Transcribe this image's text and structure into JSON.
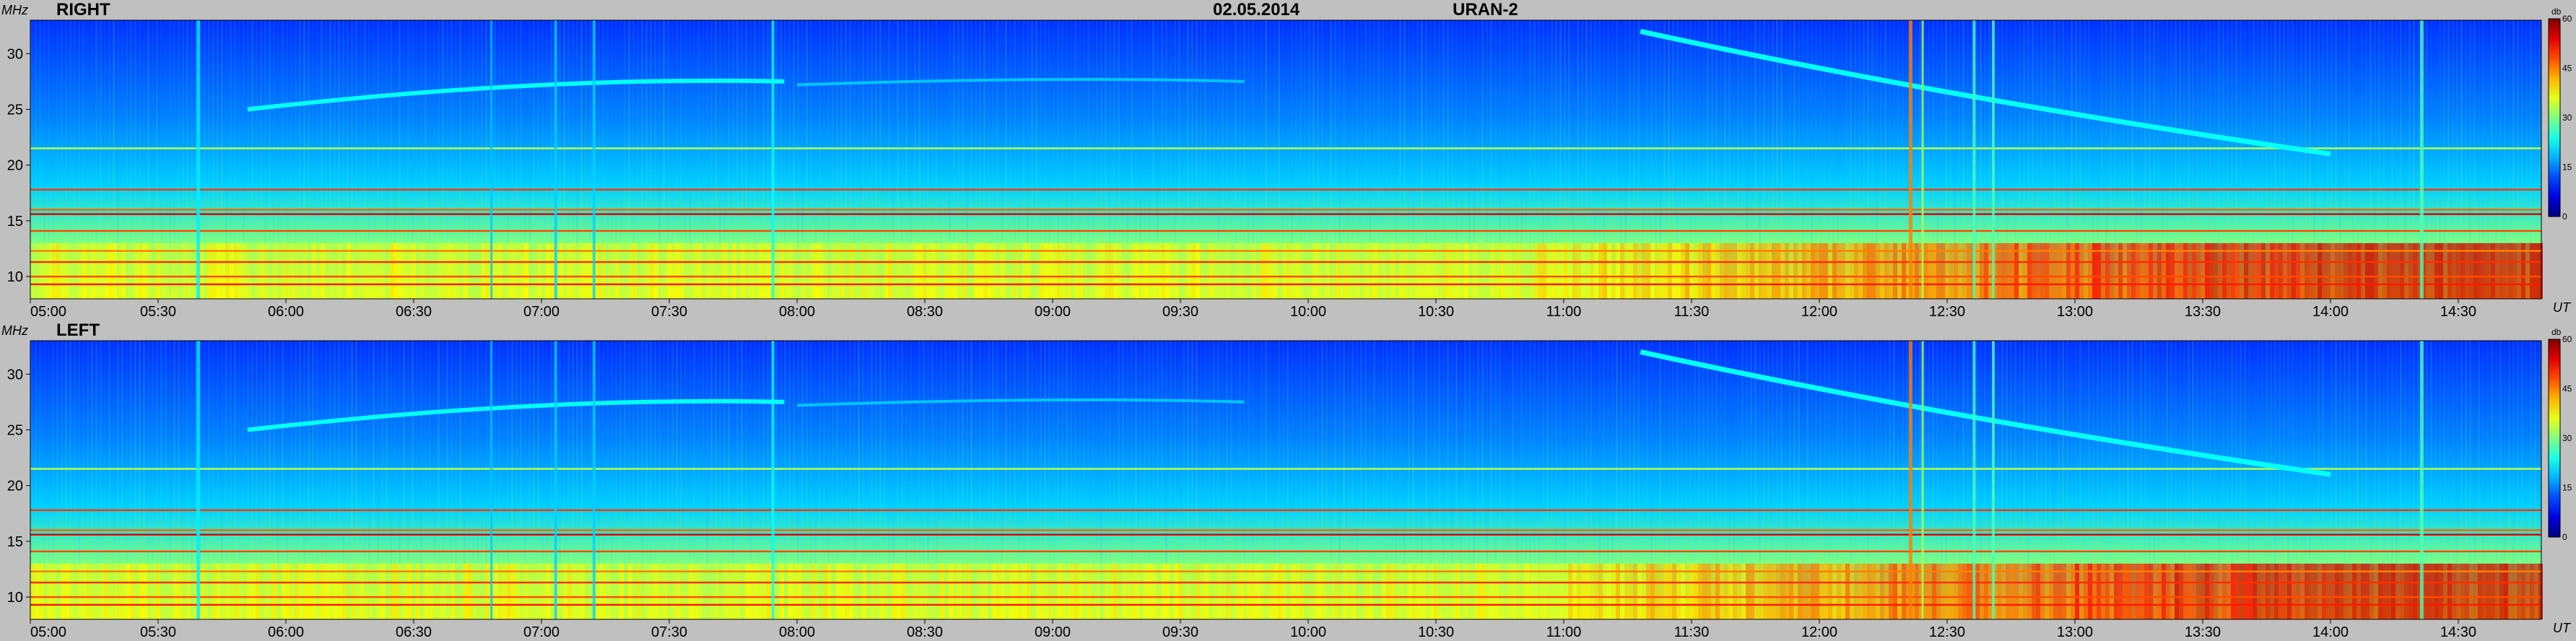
{
  "header": {
    "date": "02.05.2014",
    "instrument": "URAN-2"
  },
  "chart_data": [
    {
      "type": "heatmap",
      "title": "RIGHT",
      "ylabel": "MHz",
      "xlabel": "UT",
      "x_ticks": [
        "05:00",
        "05:30",
        "06:00",
        "06:30",
        "07:00",
        "07:30",
        "08:00",
        "08:30",
        "09:00",
        "09:30",
        "10:00",
        "10:30",
        "11:00",
        "11:30",
        "12:00",
        "12:30",
        "13:00",
        "13:30",
        "14:00",
        "14:30"
      ],
      "y_ticks": [
        "30",
        "25",
        "20",
        "15",
        "10"
      ],
      "ylim": [
        8,
        33
      ],
      "colorbar": {
        "label": "db",
        "ticks": [
          "60",
          "45",
          "30",
          "15",
          "0"
        ],
        "range": [
          0,
          60
        ]
      }
    },
    {
      "type": "heatmap",
      "title": "LEFT",
      "ylabel": "MHz",
      "xlabel": "UT",
      "x_ticks": [
        "05:00",
        "05:30",
        "06:00",
        "06:30",
        "07:00",
        "07:30",
        "08:00",
        "08:30",
        "09:00",
        "09:30",
        "10:00",
        "10:30",
        "11:00",
        "11:30",
        "12:00",
        "12:30",
        "13:00",
        "13:30",
        "14:00",
        "14:30"
      ],
      "y_ticks": [
        "30",
        "25",
        "20",
        "15",
        "10"
      ],
      "ylim": [
        8,
        33
      ],
      "colorbar": {
        "label": "db",
        "ticks": [
          "60",
          "45",
          "30",
          "15",
          "0"
        ],
        "range": [
          0,
          60
        ]
      }
    }
  ]
}
